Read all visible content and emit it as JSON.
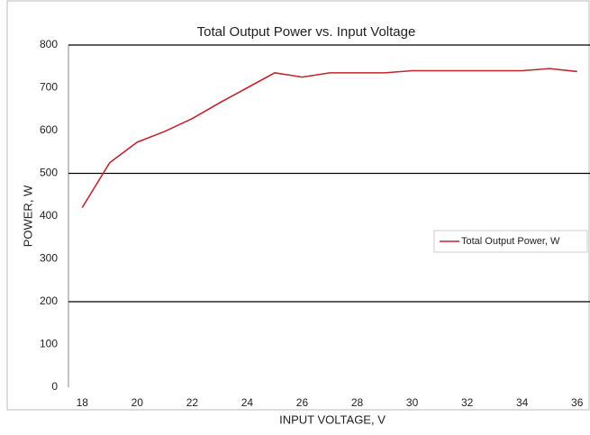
{
  "chart_data": {
    "type": "line",
    "title": "Total Output Power vs. Input Voltage",
    "x_label": "INPUT VOLTAGE, V",
    "y_label": "POWER, W",
    "x": [
      18,
      19,
      20,
      21,
      22,
      23,
      24,
      25,
      26,
      27,
      28,
      29,
      30,
      31,
      32,
      33,
      34,
      35,
      36
    ],
    "series": [
      {
        "name": "Total Output Power, W",
        "color": "#c0262d",
        "values": [
          420,
          525,
          573,
          598,
          628,
          665,
          700,
          735,
          725,
          735,
          735,
          735,
          740,
          740,
          740,
          740,
          740,
          745,
          738
        ]
      }
    ],
    "xlim": [
      17.5,
      36.5
    ],
    "xticks": [
      18,
      20,
      22,
      24,
      26,
      28,
      30,
      32,
      34,
      36
    ],
    "ylim": [
      0,
      800
    ],
    "yticks": [
      0,
      100,
      200,
      300,
      400,
      500,
      600,
      700,
      800
    ],
    "y_gridlines": [
      200,
      500,
      800
    ],
    "legend": "right"
  }
}
